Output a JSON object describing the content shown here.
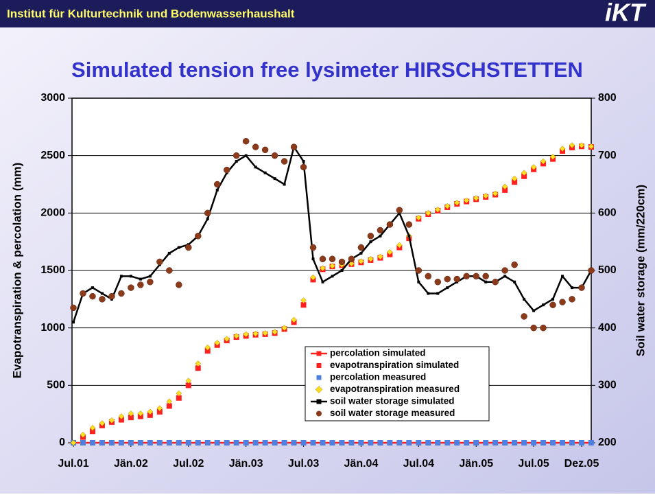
{
  "slide": {
    "header": "Institut für Kulturtechnik und Bodenwasserhaushalt",
    "logo": "iKT"
  },
  "chart_data": {
    "type": "line",
    "title": "Simulated tension free lysimeter HIRSCHSTETTEN",
    "y_label": "Evapotranspiration & percolation (mm)",
    "y2_label": "Soil water storage (mm/220cm)",
    "x": [
      "2001-07",
      "2001-08",
      "2001-09",
      "2001-10",
      "2001-11",
      "2001-12",
      "2002-01",
      "2002-02",
      "2002-03",
      "2002-04",
      "2002-05",
      "2002-06",
      "2002-07",
      "2002-08",
      "2002-09",
      "2002-10",
      "2002-11",
      "2002-12",
      "2003-01",
      "2003-02",
      "2003-03",
      "2003-04",
      "2003-05",
      "2003-06",
      "2003-07",
      "2003-08",
      "2003-09",
      "2003-10",
      "2003-11",
      "2003-12",
      "2004-01",
      "2004-02",
      "2004-03",
      "2004-04",
      "2004-05",
      "2004-06",
      "2004-07",
      "2004-08",
      "2004-09",
      "2004-10",
      "2004-11",
      "2004-12",
      "2005-01",
      "2005-02",
      "2005-03",
      "2005-04",
      "2005-05",
      "2005-06",
      "2005-07",
      "2005-08",
      "2005-09",
      "2005-10",
      "2005-11",
      "2005-12",
      "2006-01"
    ],
    "xlim": [
      "2001-07",
      "2006-01"
    ],
    "xticks": [
      {
        "value": "2001-07",
        "label": "Jul.01"
      },
      {
        "value": "2002-01",
        "label": "Jän.02"
      },
      {
        "value": "2002-07",
        "label": "Jul.02"
      },
      {
        "value": "2003-01",
        "label": "Jän.03"
      },
      {
        "value": "2003-07",
        "label": "Jul.03"
      },
      {
        "value": "2004-01",
        "label": "Jän.04"
      },
      {
        "value": "2004-07",
        "label": "Jul.04"
      },
      {
        "value": "2005-01",
        "label": "Jän.05"
      },
      {
        "value": "2005-07",
        "label": "Jul.05"
      },
      {
        "value": "2005-12",
        "label": "Dez.05"
      }
    ],
    "ylim": [
      0,
      3000
    ],
    "yticks": [
      0,
      500,
      1000,
      1500,
      2000,
      2500,
      3000
    ],
    "y2lim": [
      200,
      800
    ],
    "y2ticks": [
      200,
      300,
      400,
      500,
      600,
      700,
      800
    ],
    "grid": true,
    "series": [
      {
        "name": "percolation simulated",
        "color": "#ff2020",
        "line": true,
        "marker": "square",
        "values": [
          0,
          0,
          0,
          0,
          0,
          0,
          0,
          0,
          0,
          0,
          0,
          0,
          0,
          0,
          0,
          0,
          0,
          0,
          0,
          0,
          0,
          0,
          0,
          0,
          0,
          0,
          0,
          0,
          0,
          0,
          0,
          0,
          0,
          0,
          0,
          0,
          0,
          0,
          0,
          0,
          0,
          0,
          0,
          0,
          0,
          0,
          0,
          0,
          0,
          0,
          0,
          0,
          0,
          0,
          0
        ]
      },
      {
        "name": "evapotranspiration simulated",
        "color": "#ff2020",
        "line": false,
        "marker": "square",
        "values": [
          0,
          50,
          100,
          150,
          180,
          200,
          220,
          230,
          240,
          270,
          320,
          390,
          500,
          650,
          800,
          850,
          890,
          920,
          930,
          940,
          945,
          955,
          990,
          1050,
          1200,
          1420,
          1510,
          1535,
          1545,
          1555,
          1570,
          1590,
          1610,
          1640,
          1700,
          1780,
          1950,
          1990,
          2020,
          2050,
          2080,
          2100,
          2120,
          2140,
          2160,
          2200,
          2270,
          2320,
          2380,
          2430,
          2470,
          2540,
          2570,
          2580,
          2575
        ]
      },
      {
        "name": "percolation measured",
        "color": "#4f7fdf",
        "line": false,
        "marker": "square",
        "values": [
          0,
          0,
          0,
          0,
          0,
          0,
          0,
          0,
          0,
          0,
          0,
          0,
          0,
          0,
          0,
          0,
          0,
          0,
          0,
          0,
          0,
          0,
          0,
          0,
          0,
          0,
          0,
          0,
          0,
          0,
          0,
          0,
          0,
          0,
          0,
          0,
          0,
          0,
          0,
          0,
          0,
          0,
          0,
          0,
          0,
          0,
          0,
          0,
          0,
          0,
          0,
          0,
          0,
          0,
          0
        ]
      },
      {
        "name": "evapotranspiration measured",
        "color": "#ffdd22",
        "line": false,
        "marker": "diamond",
        "values": [
          0,
          70,
          130,
          170,
          195,
          230,
          255,
          255,
          270,
          300,
          360,
          430,
          540,
          690,
          830,
          870,
          905,
          930,
          945,
          950,
          955,
          965,
          1000,
          1070,
          1240,
          1440,
          1520,
          1540,
          1550,
          1560,
          1580,
          1600,
          1620,
          1660,
          1720,
          1800,
          1960,
          2000,
          2030,
          2060,
          2090,
          2110,
          2130,
          2150,
          2170,
          2230,
          2300,
          2350,
          2400,
          2450,
          2490,
          2560,
          2590,
          2590,
          2580
        ]
      },
      {
        "name": "soil water storage simulated",
        "color": "#000000",
        "line": true,
        "marker": "square",
        "axis": "y2",
        "values": [
          410,
          460,
          470,
          460,
          450,
          490,
          490,
          485,
          490,
          510,
          530,
          540,
          545,
          560,
          590,
          640,
          670,
          690,
          700,
          680,
          670,
          660,
          650,
          715,
          690,
          520,
          480,
          490,
          500,
          520,
          530,
          550,
          560,
          580,
          600,
          560,
          480,
          460,
          460,
          470,
          480,
          490,
          490,
          480,
          480,
          490,
          480,
          450,
          430,
          440,
          450,
          490,
          470,
          470,
          500
        ]
      },
      {
        "name": "soil water storage measured",
        "color": "#8b3a1a",
        "line": false,
        "marker": "circle",
        "axis": "y2",
        "values": [
          435,
          460,
          455,
          450,
          455,
          460,
          470,
          475,
          480,
          515,
          500,
          475,
          540,
          560,
          600,
          650,
          675,
          700,
          725,
          715,
          710,
          700,
          690,
          715,
          680,
          540,
          520,
          520,
          515,
          520,
          540,
          560,
          570,
          580,
          605,
          580,
          500,
          490,
          480,
          485,
          485,
          490,
          490,
          490,
          480,
          500,
          510,
          420,
          400,
          400,
          440,
          445,
          450,
          470,
          500
        ]
      }
    ]
  }
}
